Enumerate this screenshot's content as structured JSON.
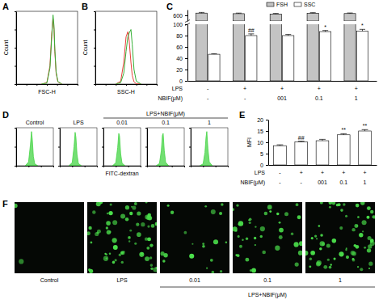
{
  "chart_data": [
    {
      "panel": "A",
      "type": "line",
      "x_label": "FSC-H",
      "y_label": "Count",
      "log": "x",
      "tick_labels": false,
      "xlim": [
        1,
        1000000
      ],
      "xticks": [
        1,
        10,
        100,
        1000,
        10000,
        100000,
        1000000
      ],
      "ylim": [
        0,
        1000
      ],
      "yticks": [
        0,
        250,
        500,
        750,
        1000
      ],
      "x": [
        300,
        1000,
        2000,
        3000,
        4000,
        5000,
        6000,
        8000,
        12000,
        30000
      ],
      "series": [
        {
          "color": "#e8413a",
          "values": [
            0,
            20,
            250,
            700,
            900,
            750,
            450,
            150,
            30,
            0
          ]
        },
        {
          "color": "#35b035",
          "values": [
            0,
            15,
            220,
            650,
            950,
            800,
            480,
            170,
            35,
            0
          ]
        }
      ]
    },
    {
      "panel": "B",
      "type": "line",
      "x_label": "SSC-H",
      "y_label": "Count",
      "log": "x",
      "tick_labels": false,
      "xlim": [
        1,
        1000000
      ],
      "xticks": [
        1,
        10,
        100,
        1000,
        10000,
        100000,
        1000000
      ],
      "ylim": [
        0,
        1000
      ],
      "yticks": [
        0,
        250,
        500,
        750,
        1000
      ],
      "x": [
        100,
        300,
        600,
        1000,
        1500,
        2000,
        3000,
        4000,
        6000,
        10000,
        30000
      ],
      "series": [
        {
          "color": "#e8413a",
          "values": [
            0,
            40,
            300,
            650,
            720,
            600,
            300,
            120,
            30,
            5,
            0
          ]
        },
        {
          "color": "#35b035",
          "values": [
            0,
            20,
            150,
            450,
            650,
            700,
            750,
            550,
            200,
            40,
            0
          ]
        }
      ]
    },
    {
      "panel": "C",
      "type": "bar",
      "legend": "top",
      "tick_labels": "y",
      "categories": [
        null,
        null,
        null,
        null,
        null
      ],
      "segments": [
        {
          "ylim": [
            0,
            100
          ],
          "yticks": [
            0,
            20,
            40,
            60,
            80,
            100
          ]
        },
        {
          "ylim": [
            550,
            650
          ],
          "yticks": [
            600
          ]
        }
      ],
      "series": [
        {
          "name": "FSH",
          "color": "#c4c4c4",
          "values": [
            620,
            615,
            612,
            618,
            616
          ],
          "errors": [
            6,
            5,
            5,
            6,
            5
          ]
        },
        {
          "name": "SSC",
          "color": "#ffffff",
          "values": [
            47,
            80,
            80,
            87,
            88
          ],
          "errors": [
            1,
            3,
            2,
            2,
            3
          ],
          "annotations": [
            null,
            "##",
            null,
            "*",
            "*"
          ]
        }
      ],
      "rows": [
        {
          "label": "LPS",
          "values": [
            "-",
            "+",
            "+",
            "+",
            "+"
          ]
        },
        {
          "label": "NBIF(μM)",
          "values": [
            "-",
            "-",
            "001",
            "0.1",
            "1"
          ]
        }
      ]
    },
    {
      "panel": "D",
      "type": "area",
      "x_label": "FITC-dextran",
      "log": "x",
      "tick_labels": false,
      "xlim": [
        1,
        1000000
      ],
      "xticks": [
        1,
        100,
        10000,
        1000000
      ],
      "ylim": [
        0,
        100
      ],
      "yticks": [
        0,
        50,
        100
      ],
      "x": [
        30,
        100,
        200,
        300,
        400,
        600,
        1000,
        3000
      ],
      "series": [
        {
          "name": "Control",
          "color": "#44d444",
          "values": [
            0,
            10,
            55,
            90,
            70,
            25,
            5,
            0
          ]
        },
        {
          "name": "LPS",
          "color": "#44d444",
          "values": [
            0,
            8,
            50,
            88,
            75,
            30,
            6,
            0
          ]
        }
      ],
      "group": {
        "label": "LPS+NBIF(μM)",
        "series": [
          {
            "name": "0.01",
            "color": "#44d444",
            "values": [
              0,
              8,
              48,
              85,
              78,
              32,
              7,
              0
            ]
          },
          {
            "name": "0.1",
            "color": "#44d444",
            "values": [
              0,
              6,
              40,
              80,
              85,
              40,
              9,
              0
            ]
          },
          {
            "name": "1",
            "color": "#44d444",
            "values": [
              0,
              5,
              35,
              75,
              90,
              45,
              10,
              0
            ]
          }
        ]
      }
    },
    {
      "panel": "E",
      "type": "bar",
      "y_label": "MFI",
      "tick_labels": "y",
      "color": "#ffffff",
      "categories": [
        null,
        null,
        null,
        null,
        null
      ],
      "ylim": [
        0,
        20
      ],
      "yticks": [
        0,
        5,
        10,
        15,
        20
      ],
      "values": [
        8.5,
        10.2,
        10.7,
        13.3,
        15
      ],
      "errors": [
        0.4,
        0.3,
        0.6,
        0.5,
        0.6
      ],
      "annotations": [
        null,
        "##",
        null,
        "**",
        "**"
      ],
      "rows": [
        {
          "label": "LPS",
          "values": [
            "-",
            "+",
            "+",
            "+",
            "+"
          ]
        },
        {
          "label": "NBIF(μM)",
          "values": [
            "-",
            "-",
            "001",
            "0.1",
            "1"
          ]
        }
      ]
    },
    {
      "panel": "F",
      "type": "image",
      "labels": [
        "Control",
        "LPS"
      ],
      "group": {
        "label": "LPS+NBIF(μM)",
        "labels": [
          "0.01",
          "0.1",
          "1"
        ]
      }
    }
  ]
}
